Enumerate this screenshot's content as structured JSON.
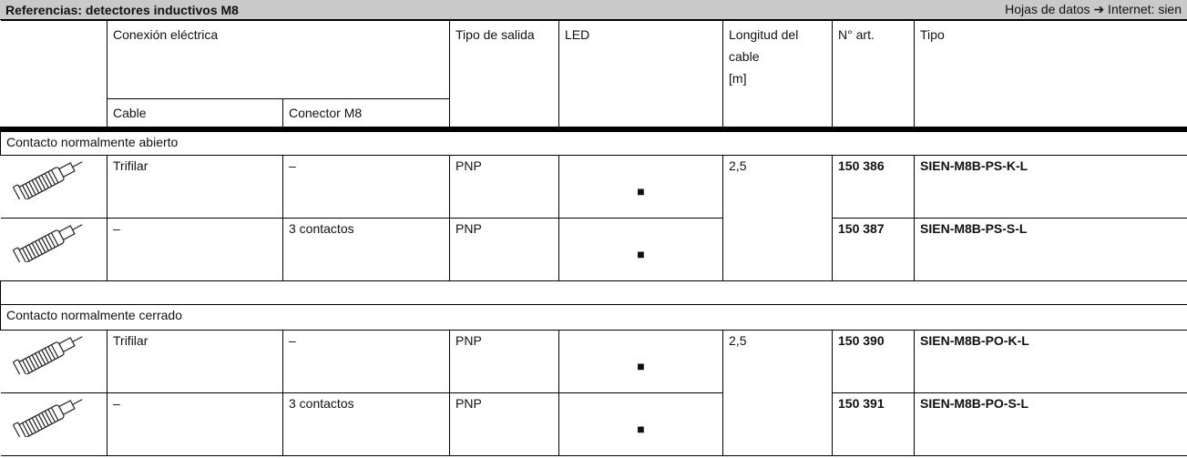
{
  "header": {
    "title": "Referencias: detectores inductivos M8",
    "right": "Hojas de datos ➔ Internet: sien"
  },
  "columns": {
    "conexion": "Conexión eléctrica",
    "cable": "Cable",
    "conector": "Conector M8",
    "salida": "Tipo de salida",
    "led": "LED",
    "longitud": [
      "Longitud del",
      "cable",
      "[m]"
    ],
    "art": "N° art.",
    "tipo": "Tipo"
  },
  "sections": [
    {
      "title": "Contacto normalmente abierto",
      "longitud": "2,5",
      "rows": [
        {
          "cable": "Trifilar",
          "conector": "–",
          "salida": "PNP",
          "led": "■",
          "art": "150 386",
          "tipo": "SIEN-M8B-PS-K-L"
        },
        {
          "cable": "–",
          "conector": "3 contactos",
          "salida": "PNP",
          "led": "■",
          "art": "150 387",
          "tipo": "SIEN-M8B-PS-S-L"
        }
      ]
    },
    {
      "title": "Contacto normalmente cerrado",
      "longitud": "2,5",
      "rows": [
        {
          "cable": "Trifilar",
          "conector": "–",
          "salida": "PNP",
          "led": "■",
          "art": "150 390",
          "tipo": "SIEN-M8B-PO-K-L"
        },
        {
          "cable": "–",
          "conector": "3 contactos",
          "salida": "PNP",
          "led": "■",
          "art": "150 391",
          "tipo": "SIEN-M8B-PO-S-L"
        }
      ]
    }
  ]
}
